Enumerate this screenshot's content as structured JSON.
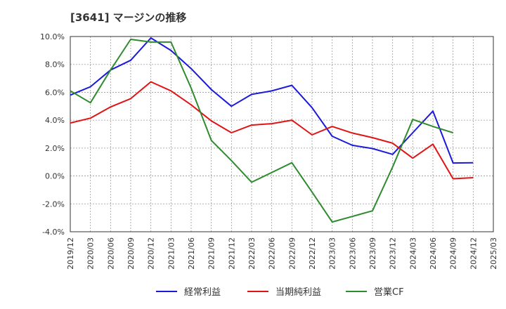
{
  "chart_data": {
    "type": "line",
    "title": "[3641]  マージンの推移",
    "xlabel": "",
    "ylabel": "",
    "ylim": [
      -4.0,
      10.0
    ],
    "yticks": [
      "10.0%",
      "8.0%",
      "6.0%",
      "4.0%",
      "2.0%",
      "0.0%",
      "-2.0%",
      "-4.0%"
    ],
    "ytick_values": [
      10,
      8,
      6,
      4,
      2,
      0,
      -2,
      -4
    ],
    "x": [
      "2019/12",
      "2020/03",
      "2020/06",
      "2020/09",
      "2020/12",
      "2021/03",
      "2021/06",
      "2021/09",
      "2021/12",
      "2022/03",
      "2022/06",
      "2022/09",
      "2022/12",
      "2023/03",
      "2023/06",
      "2023/09",
      "2023/12",
      "2024/03",
      "2024/06",
      "2024/09",
      "2024/12",
      "2025/03"
    ],
    "grid": true,
    "legend_position": "bottom",
    "series": [
      {
        "name": "経常利益",
        "color": "#1a1adb",
        "values": [
          5.8,
          6.4,
          7.6,
          8.3,
          9.9,
          9.0,
          7.7,
          6.2,
          5.0,
          5.85,
          6.1,
          6.5,
          4.9,
          2.85,
          2.2,
          1.97,
          1.55,
          3.1,
          4.65,
          0.93,
          0.95,
          null
        ]
      },
      {
        "name": "当期純利益",
        "color": "#e01414",
        "values": [
          3.8,
          4.15,
          4.95,
          5.55,
          6.75,
          6.1,
          5.1,
          3.95,
          3.1,
          3.65,
          3.75,
          4.0,
          2.95,
          3.55,
          3.08,
          2.75,
          2.35,
          1.28,
          2.28,
          -0.2,
          -0.12,
          null
        ]
      },
      {
        "name": "営業CF",
        "color": "#2e8b2e",
        "values": [
          6.1,
          5.25,
          7.6,
          9.8,
          9.6,
          9.6,
          6.3,
          2.55,
          1.1,
          -0.45,
          0.25,
          0.95,
          -1.15,
          -3.3,
          -2.9,
          -2.5,
          0.65,
          4.05,
          3.55,
          3.1,
          null,
          null
        ]
      }
    ]
  }
}
